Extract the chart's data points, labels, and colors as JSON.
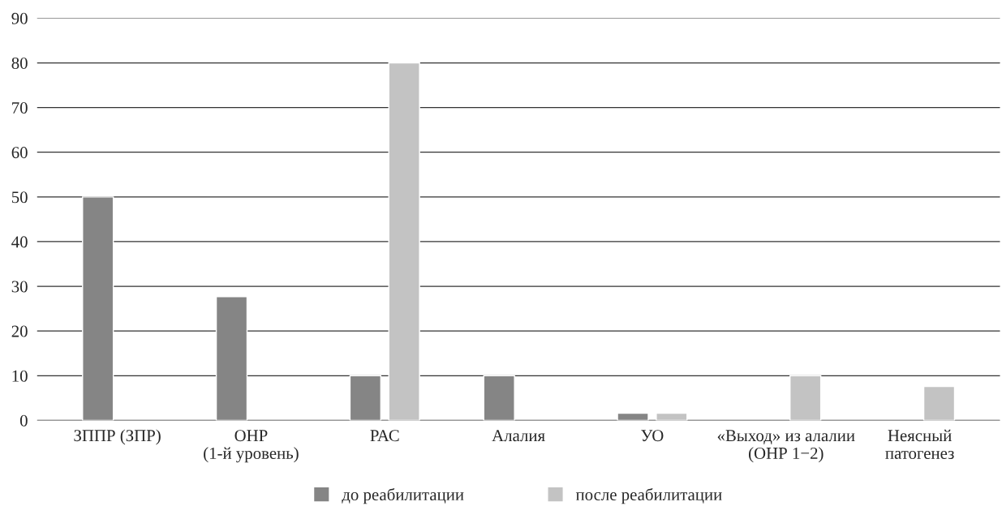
{
  "chart_data": {
    "type": "bar",
    "categories": [
      "ЗППР (ЗПР)",
      "ОНР\n(1-й уровень)",
      "РАС",
      "Алалия",
      "УО",
      "«Выход» из алалии\n(ОНР 1−2)",
      "Неясный\nпатогенез"
    ],
    "series": [
      {
        "name": "до реабилитации",
        "color": "#858585",
        "values": [
          50,
          27.7,
          10,
          10,
          1.6,
          null,
          null
        ]
      },
      {
        "name": "после реабилитации",
        "color": "#c3c3c3",
        "values": [
          null,
          null,
          80,
          null,
          1.6,
          10,
          7.6
        ]
      }
    ],
    "ylim": [
      0,
      90
    ],
    "yticks": [
      0,
      10,
      20,
      30,
      40,
      50,
      60,
      70,
      80,
      90
    ],
    "grid": "y",
    "legend": "bottom"
  }
}
